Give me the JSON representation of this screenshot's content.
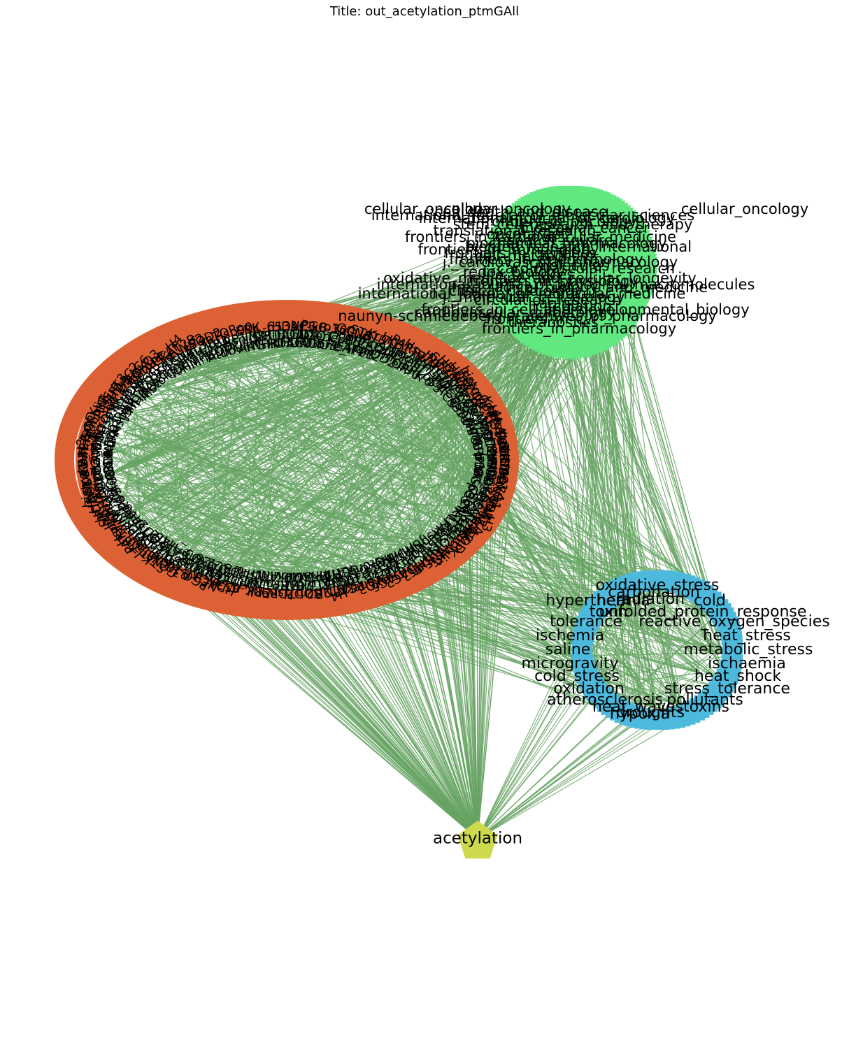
{
  "title": "Title: out_acetylation_ptmGAll",
  "colors": {
    "edge": "#66a363",
    "journal_nodes": "#62e881",
    "protein_nodes": "#dc6236",
    "stress_nodes": "#4dbadd",
    "ptm_node": "#cfd94d",
    "label": "#000000"
  },
  "central_node": {
    "label": "acetylation",
    "shape": "pentagon"
  },
  "clusters": {
    "journals": {
      "labels": [
        "cellular_oncology",
        "international_journal_of_molecular_sciences",
        "frontiers_in_oncology",
        "molecular_cancer",
        "oncotarget",
        "research_square",
        "biomed_research_international",
        "frontiers_in_genetics",
        "frontiers_in_endocrinology",
        "molecules",
        "redox_biology",
        "oxidative_medicine_and_cellular_longevity",
        "international_journal_of_biological_macromolecules",
        "j._clinical_cardiology",
        "j._molecular_cell_biology",
        "aging",
        "frontiers_in_cell_and_developmental_biology",
        "naunyn-schmiedeberg's_archives_of_pharmacology",
        "theranostics",
        "frontiers_in_pharmacology",
        "cell_death_and_disease",
        "international_journal_of_cardiology",
        "stem_cell_research_and_therapy",
        "translational_research",
        "frontiers_in_cardiovascular_medicine",
        "biochemical_pharmacology",
        "frontiers_in_immunology",
        "cell_metabolism",
        "j._cardiovascular_pharmacology",
        "cardiovascular_research",
        "life_sciences",
        "frontiers_in_physiology",
        "free_radical_biology_and_medicine",
        "international_journal_of_molecular_medicine",
        "circulation_research",
        "circulation",
        "cardiovascular_diabetology",
        "frontiers_in_cvi"
      ]
    },
    "stress": {
      "labels": [
        "oxidative_stress",
        "carbonation",
        "radiation",
        "heat",
        "cold",
        "hyperthermia",
        "toxin",
        "unfolded_protein_response",
        "tolerance",
        "reactive_oxygen_species",
        "heat_stress",
        "ischemia",
        "saline",
        "metabolic_stress",
        "microgravity",
        "ischaemia",
        "cold_stress",
        "heat_shock",
        "oxidation",
        "stress_tolerance",
        "atherosclerosis",
        "pollutants",
        "heat_waves",
        "toxins",
        "droughts",
        "hypoxia"
      ]
    },
    "proteins": {
      "labels": [
        "SIRT1",
        "SIRT3",
        "p53",
        "HDAC1",
        "HDAC2",
        "HDAC3",
        "HDAC4",
        "HDAC6",
        "NF-κB",
        "FOXO1",
        "FOXO3",
        "PGC-1α",
        "histone_H3",
        "histone_H4",
        "p300",
        "CBP",
        "PCAF",
        "GCN5",
        "KAT2A",
        "KAT2B",
        "STAT3",
        "HIF-1α",
        "Nrf2",
        "Ku70",
        "MnSOD",
        "SOD2",
        "LKB1",
        "AMPK",
        "mTOR",
        "PARP1",
        "tubulin",
        "Hsp90",
        "Hsp70",
        "AKT",
        "ERK",
        "JNK",
        "TNF-α",
        "IL-6"
      ]
    }
  }
}
